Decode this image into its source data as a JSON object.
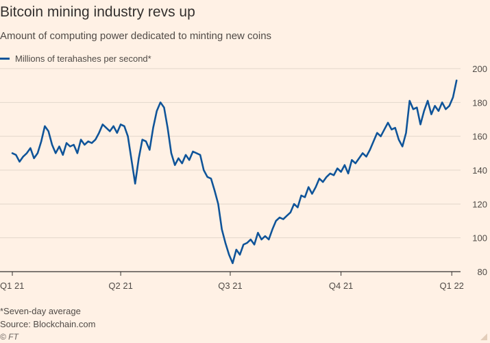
{
  "title": "Bitcoin mining industry revs up",
  "subtitle": "Amount of computing power dedicated to minting new coins",
  "footnote": "*Seven-day average",
  "source": "Source: Blockchain.com",
  "credit": "© FT",
  "colors": {
    "line": "#0f5499",
    "grid": "#e3d6ca",
    "axis": "#33302e",
    "background": "#fff1e5"
  },
  "chart_data": {
    "type": "line",
    "title": "Bitcoin mining industry revs up",
    "subtitle": "Amount of computing power dedicated to minting new coins",
    "xlabel": "",
    "ylabel": "",
    "ylim": [
      80,
      200
    ],
    "y_ticks": [
      80,
      100,
      120,
      140,
      160,
      180,
      200
    ],
    "x_ticks": [
      {
        "label": "Q1 21",
        "date": "2021-01-01"
      },
      {
        "label": "Q2 21",
        "date": "2021-04-01"
      },
      {
        "label": "Q3 21",
        "date": "2021-07-01"
      },
      {
        "label": "Q4 21",
        "date": "2021-10-01"
      },
      {
        "label": "Q1 22",
        "date": "2022-01-01"
      }
    ],
    "grid": true,
    "legend_position": "top-left",
    "series": [
      {
        "name": "Millions of terahashes per second*",
        "points": [
          [
            "2021-01-01",
            150
          ],
          [
            "2021-01-04",
            149
          ],
          [
            "2021-01-07",
            145
          ],
          [
            "2021-01-10",
            148
          ],
          [
            "2021-01-13",
            150
          ],
          [
            "2021-01-16",
            153
          ],
          [
            "2021-01-19",
            147
          ],
          [
            "2021-01-22",
            150
          ],
          [
            "2021-01-25",
            157
          ],
          [
            "2021-01-28",
            166
          ],
          [
            "2021-01-31",
            163
          ],
          [
            "2021-02-03",
            155
          ],
          [
            "2021-02-06",
            150
          ],
          [
            "2021-02-09",
            154
          ],
          [
            "2021-02-12",
            149
          ],
          [
            "2021-02-15",
            156
          ],
          [
            "2021-02-18",
            154
          ],
          [
            "2021-02-21",
            155
          ],
          [
            "2021-02-24",
            150
          ],
          [
            "2021-02-27",
            158
          ],
          [
            "2021-03-02",
            155
          ],
          [
            "2021-03-05",
            157
          ],
          [
            "2021-03-08",
            156
          ],
          [
            "2021-03-11",
            158
          ],
          [
            "2021-03-14",
            162
          ],
          [
            "2021-03-17",
            167
          ],
          [
            "2021-03-20",
            165
          ],
          [
            "2021-03-23",
            163
          ],
          [
            "2021-03-26",
            166
          ],
          [
            "2021-03-29",
            162
          ],
          [
            "2021-04-01",
            167
          ],
          [
            "2021-04-04",
            166
          ],
          [
            "2021-04-07",
            160
          ],
          [
            "2021-04-10",
            146
          ],
          [
            "2021-04-13",
            132
          ],
          [
            "2021-04-16",
            147
          ],
          [
            "2021-04-19",
            158
          ],
          [
            "2021-04-22",
            157
          ],
          [
            "2021-04-25",
            152
          ],
          [
            "2021-04-28",
            165
          ],
          [
            "2021-05-01",
            175
          ],
          [
            "2021-05-04",
            180
          ],
          [
            "2021-05-07",
            177
          ],
          [
            "2021-05-10",
            165
          ],
          [
            "2021-05-13",
            150
          ],
          [
            "2021-05-16",
            143
          ],
          [
            "2021-05-19",
            147
          ],
          [
            "2021-05-22",
            144
          ],
          [
            "2021-05-25",
            149
          ],
          [
            "2021-05-28",
            146
          ],
          [
            "2021-05-31",
            151
          ],
          [
            "2021-06-03",
            150
          ],
          [
            "2021-06-06",
            149
          ],
          [
            "2021-06-09",
            140
          ],
          [
            "2021-06-12",
            136
          ],
          [
            "2021-06-15",
            135
          ],
          [
            "2021-06-18",
            128
          ],
          [
            "2021-06-21",
            120
          ],
          [
            "2021-06-24",
            105
          ],
          [
            "2021-06-27",
            97
          ],
          [
            "2021-06-30",
            90
          ],
          [
            "2021-07-03",
            85
          ],
          [
            "2021-07-06",
            93
          ],
          [
            "2021-07-09",
            90
          ],
          [
            "2021-07-12",
            96
          ],
          [
            "2021-07-15",
            97
          ],
          [
            "2021-07-18",
            99
          ],
          [
            "2021-07-21",
            96
          ],
          [
            "2021-07-24",
            103
          ],
          [
            "2021-07-27",
            99
          ],
          [
            "2021-07-30",
            101
          ],
          [
            "2021-08-02",
            99
          ],
          [
            "2021-08-05",
            105
          ],
          [
            "2021-08-08",
            110
          ],
          [
            "2021-08-11",
            112
          ],
          [
            "2021-08-14",
            111
          ],
          [
            "2021-08-17",
            113
          ],
          [
            "2021-08-20",
            115
          ],
          [
            "2021-08-23",
            120
          ],
          [
            "2021-08-26",
            118
          ],
          [
            "2021-08-29",
            125
          ],
          [
            "2021-09-01",
            124
          ],
          [
            "2021-09-04",
            130
          ],
          [
            "2021-09-07",
            126
          ],
          [
            "2021-09-10",
            130
          ],
          [
            "2021-09-13",
            135
          ],
          [
            "2021-09-16",
            133
          ],
          [
            "2021-09-19",
            136
          ],
          [
            "2021-09-22",
            138
          ],
          [
            "2021-09-25",
            137
          ],
          [
            "2021-09-28",
            141
          ],
          [
            "2021-10-01",
            139
          ],
          [
            "2021-10-04",
            143
          ],
          [
            "2021-10-07",
            138
          ],
          [
            "2021-10-10",
            146
          ],
          [
            "2021-10-13",
            144
          ],
          [
            "2021-10-16",
            147
          ],
          [
            "2021-10-19",
            150
          ],
          [
            "2021-10-22",
            148
          ],
          [
            "2021-10-25",
            152
          ],
          [
            "2021-10-28",
            157
          ],
          [
            "2021-10-31",
            162
          ],
          [
            "2021-11-03",
            160
          ],
          [
            "2021-11-06",
            164
          ],
          [
            "2021-11-09",
            168
          ],
          [
            "2021-11-12",
            164
          ],
          [
            "2021-11-15",
            165
          ],
          [
            "2021-11-18",
            158
          ],
          [
            "2021-11-21",
            154
          ],
          [
            "2021-11-24",
            162
          ],
          [
            "2021-11-27",
            181
          ],
          [
            "2021-11-30",
            176
          ],
          [
            "2021-12-03",
            177
          ],
          [
            "2021-12-06",
            167
          ],
          [
            "2021-12-09",
            175
          ],
          [
            "2021-12-12",
            181
          ],
          [
            "2021-12-15",
            173
          ],
          [
            "2021-12-18",
            178
          ],
          [
            "2021-12-21",
            175
          ],
          [
            "2021-12-24",
            180
          ],
          [
            "2021-12-27",
            176
          ],
          [
            "2021-12-30",
            178
          ],
          [
            "2022-01-02",
            183
          ],
          [
            "2022-01-05",
            193
          ]
        ]
      }
    ]
  }
}
